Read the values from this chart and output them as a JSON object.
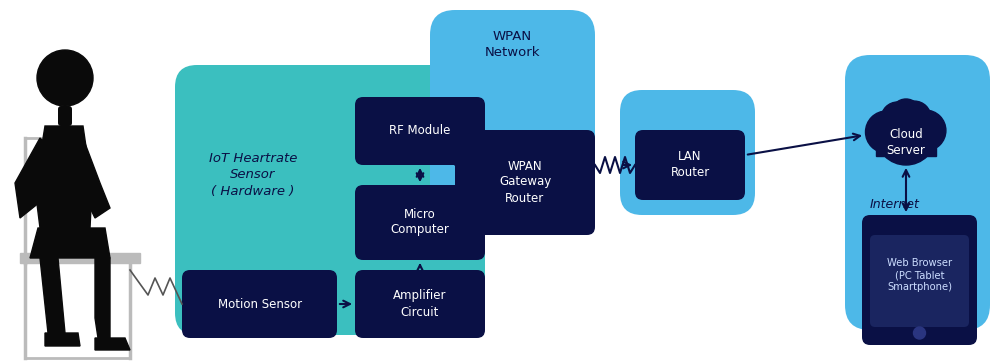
{
  "bg_color": "#ffffff",
  "teal_bg": "#3bbfbf",
  "light_blue_bg": "#4db8e8",
  "dark_navy": "#0a1045",
  "white": "#ffffff",
  "black": "#0a0a0a",
  "iot_label": "IoT Heartrate\nSensor\n( Hardware )",
  "motion_sensor_label": "Motion Sensor",
  "amplifier_label": "Amplifier\nCircuit",
  "micro_computer_label": "Micro\nComputer",
  "rf_module_label": "RF Module",
  "wpan_network_label": "WPAN\nNetwork",
  "wpan_gateway_label": "WPAN\nGateway\nRouter",
  "lan_router_label": "LAN\nRouter",
  "cloud_server_label": "Cloud\nServer",
  "internet_label": "Internet",
  "web_browser_label": "Web Browser\n(PC Tablet\nSmartphone)"
}
